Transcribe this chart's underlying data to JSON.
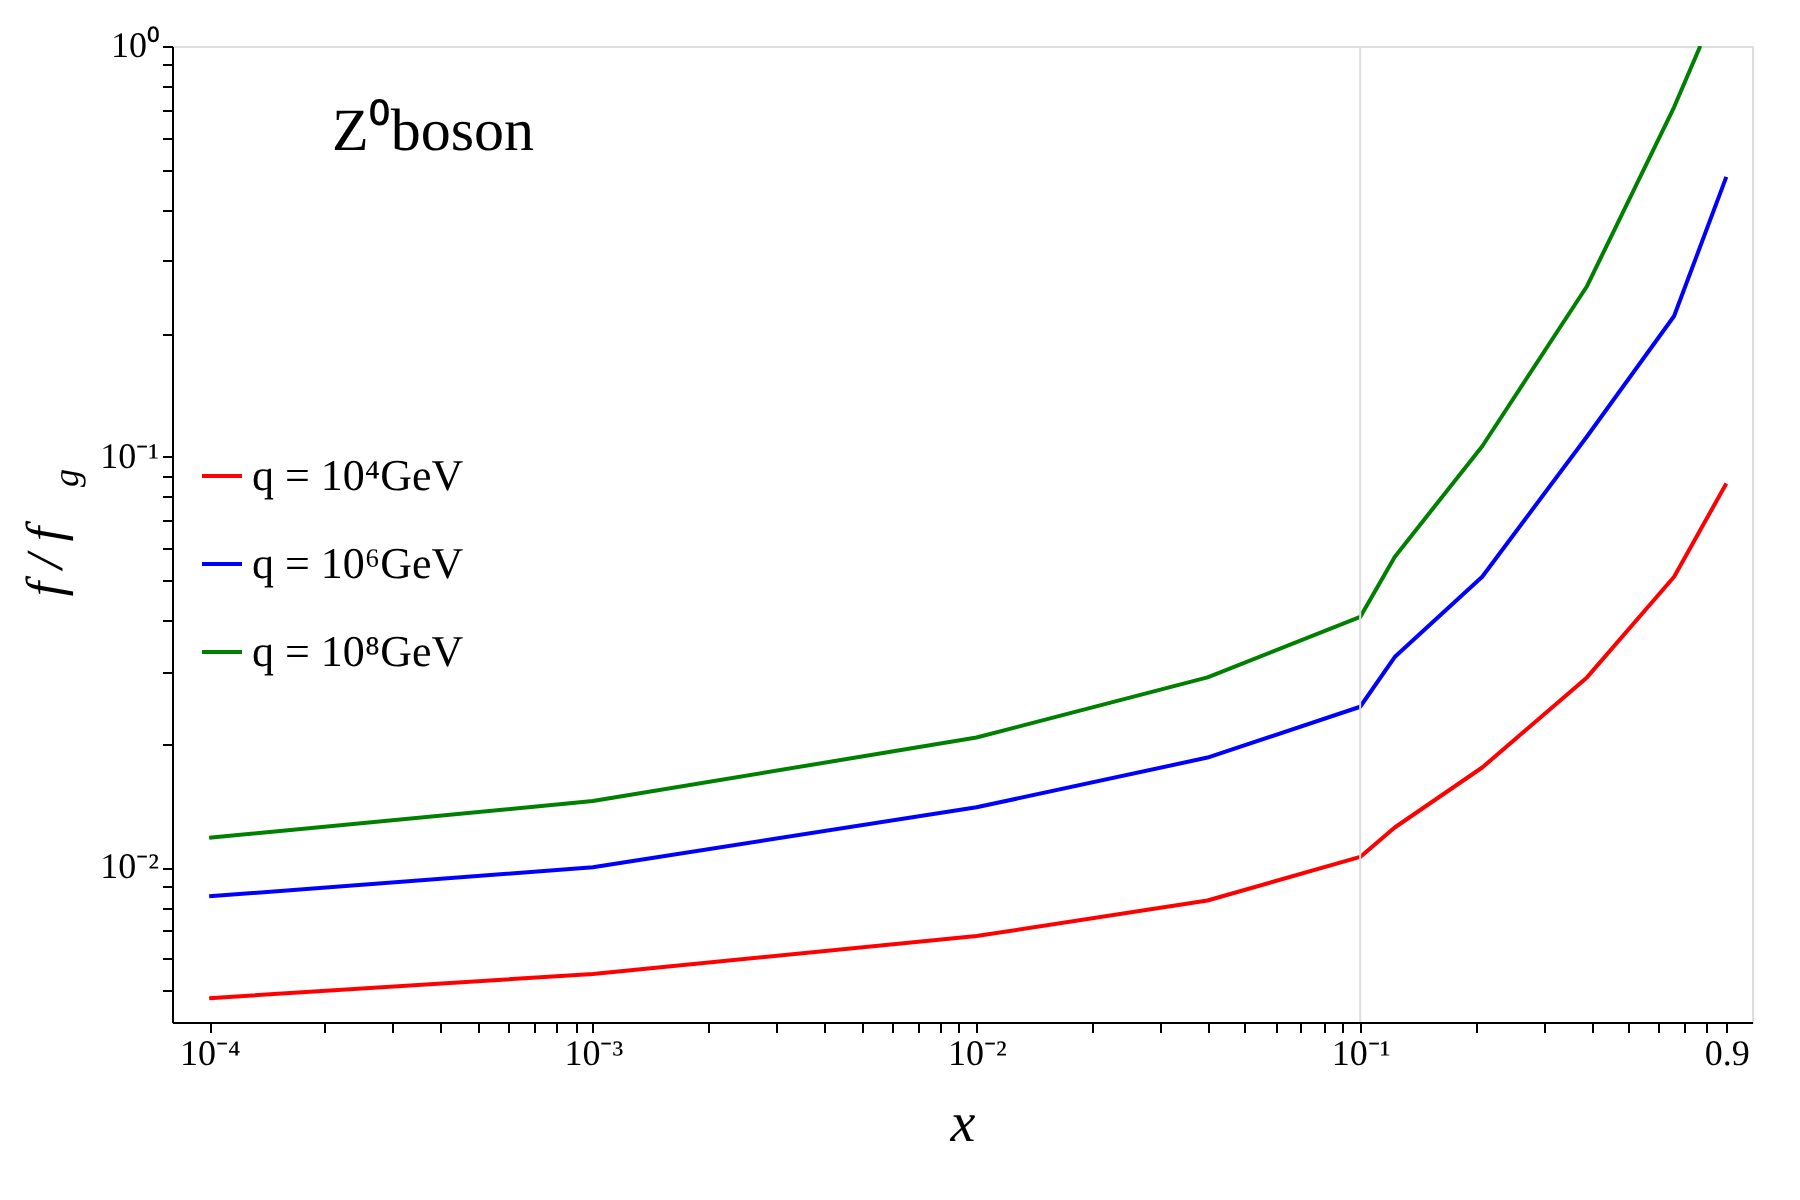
{
  "chart_data": {
    "type": "line",
    "xlabel": "x",
    "ylabel": "f / f$_{g}$",
    "annotations": [
      "Z⁰boson"
    ],
    "log": "xy",
    "grid": false,
    "legend": "left",
    "marker": "none",
    "line_style": "solid",
    "xlim": [
      8e-05,
      1.05
    ],
    "ylim": [
      0.0042,
      1
    ],
    "xticks": [
      {
        "value": 0.0001,
        "label": "10⁻⁴"
      },
      {
        "value": 0.001,
        "label": "10⁻³"
      },
      {
        "value": 0.01,
        "label": "10⁻²"
      },
      {
        "value": 0.1,
        "label": "10⁻¹"
      },
      0.9,
      {
        "value": 0.0002,
        "label": null
      },
      {
        "value": 0.0003,
        "label": null
      },
      {
        "value": 0.0004,
        "label": null
      },
      {
        "value": 0.0005,
        "label": null
      },
      {
        "value": 0.0006,
        "label": null
      },
      {
        "value": 0.0007,
        "label": null
      },
      {
        "value": 0.0008,
        "label": null
      },
      {
        "value": 0.0009,
        "label": null
      },
      {
        "value": 0.002,
        "label": null
      },
      {
        "value": 0.003,
        "label": null
      },
      {
        "value": 0.004,
        "label": null
      },
      {
        "value": 0.005,
        "label": null
      },
      {
        "value": 0.006,
        "label": null
      },
      {
        "value": 0.007,
        "label": null
      },
      {
        "value": 0.008,
        "label": null
      },
      {
        "value": 0.009,
        "label": null
      },
      {
        "value": 0.02,
        "label": null
      },
      {
        "value": 0.03,
        "label": null
      },
      {
        "value": 0.04,
        "label": null
      },
      {
        "value": 0.05,
        "label": null
      },
      {
        "value": 0.06,
        "label": null
      },
      {
        "value": 0.07,
        "label": null
      },
      {
        "value": 0.08,
        "label": null
      },
      {
        "value": 0.09,
        "label": null
      },
      {
        "value": 0.2,
        "label": null
      },
      {
        "value": 0.3,
        "label": null
      },
      {
        "value": 0.4,
        "label": null
      },
      {
        "value": 0.5,
        "label": null
      },
      {
        "value": 0.6,
        "label": null
      },
      {
        "value": 0.7,
        "label": null
      },
      {
        "value": 0.8,
        "label": null
      }
    ],
    "yticks": [
      {
        "value": 0.01,
        "label": "10⁻²"
      },
      {
        "value": 0.1,
        "label": "10⁻¹"
      },
      {
        "value": 1,
        "label": "10⁰"
      },
      {
        "value": 0.005,
        "label": null
      },
      {
        "value": 0.006,
        "label": null
      },
      {
        "value": 0.007,
        "label": null
      },
      {
        "value": 0.008,
        "label": null
      },
      {
        "value": 0.009,
        "label": null
      },
      {
        "value": 0.02,
        "label": null
      },
      {
        "value": 0.03,
        "label": null
      },
      {
        "value": 0.04,
        "label": null
      },
      {
        "value": 0.05,
        "label": null
      },
      {
        "value": 0.06,
        "label": null
      },
      {
        "value": 0.07,
        "label": null
      },
      {
        "value": 0.08,
        "label": null
      },
      {
        "value": 0.09,
        "label": null
      },
      {
        "value": 0.2,
        "label": null
      },
      {
        "value": 0.3,
        "label": null
      },
      {
        "value": 0.4,
        "label": null
      },
      {
        "value": 0.5,
        "label": null
      },
      {
        "value": 0.6,
        "label": null
      },
      {
        "value": 0.7,
        "label": null
      },
      {
        "value": 0.8,
        "label": null
      },
      {
        "value": 0.9,
        "label": null
      }
    ],
    "ref_lines": [
      {
        "axis": "x",
        "value": 0.1,
        "label": null,
        "color": "#dddddd",
        "line_style": "solid"
      }
    ],
    "series": [
      {
        "name": "q = 10⁴GeV",
        "color": "#ff0000",
        "x": [
          0.0001,
          0.001,
          0.01,
          0.04,
          0.1,
          0.123,
          0.208,
          0.39,
          0.658,
          0.9
        ],
        "values": [
          0.0048,
          0.0055,
          0.0068,
          0.0083,
          0.0106,
          0.0125,
          0.0175,
          0.029,
          0.051,
          0.086
        ]
      },
      {
        "name": "q = 10⁶GeV",
        "color": "#0000ff",
        "x": [
          0.0001,
          0.001,
          0.01,
          0.04,
          0.1,
          0.123,
          0.208,
          0.39,
          0.658,
          0.9
        ],
        "values": [
          0.0085,
          0.01,
          0.014,
          0.0185,
          0.0246,
          0.0325,
          0.051,
          0.112,
          0.22,
          0.48
        ]
      },
      {
        "name": "q = 10⁸GeV",
        "color": "#008000",
        "x": [
          0.0001,
          0.001,
          0.01,
          0.04,
          0.1,
          0.123,
          0.208,
          0.39,
          0.658,
          0.77
        ],
        "values": [
          0.0118,
          0.0145,
          0.0207,
          0.029,
          0.0407,
          0.057,
          0.106,
          0.26,
          0.71,
          1.0
        ]
      }
    ]
  }
}
